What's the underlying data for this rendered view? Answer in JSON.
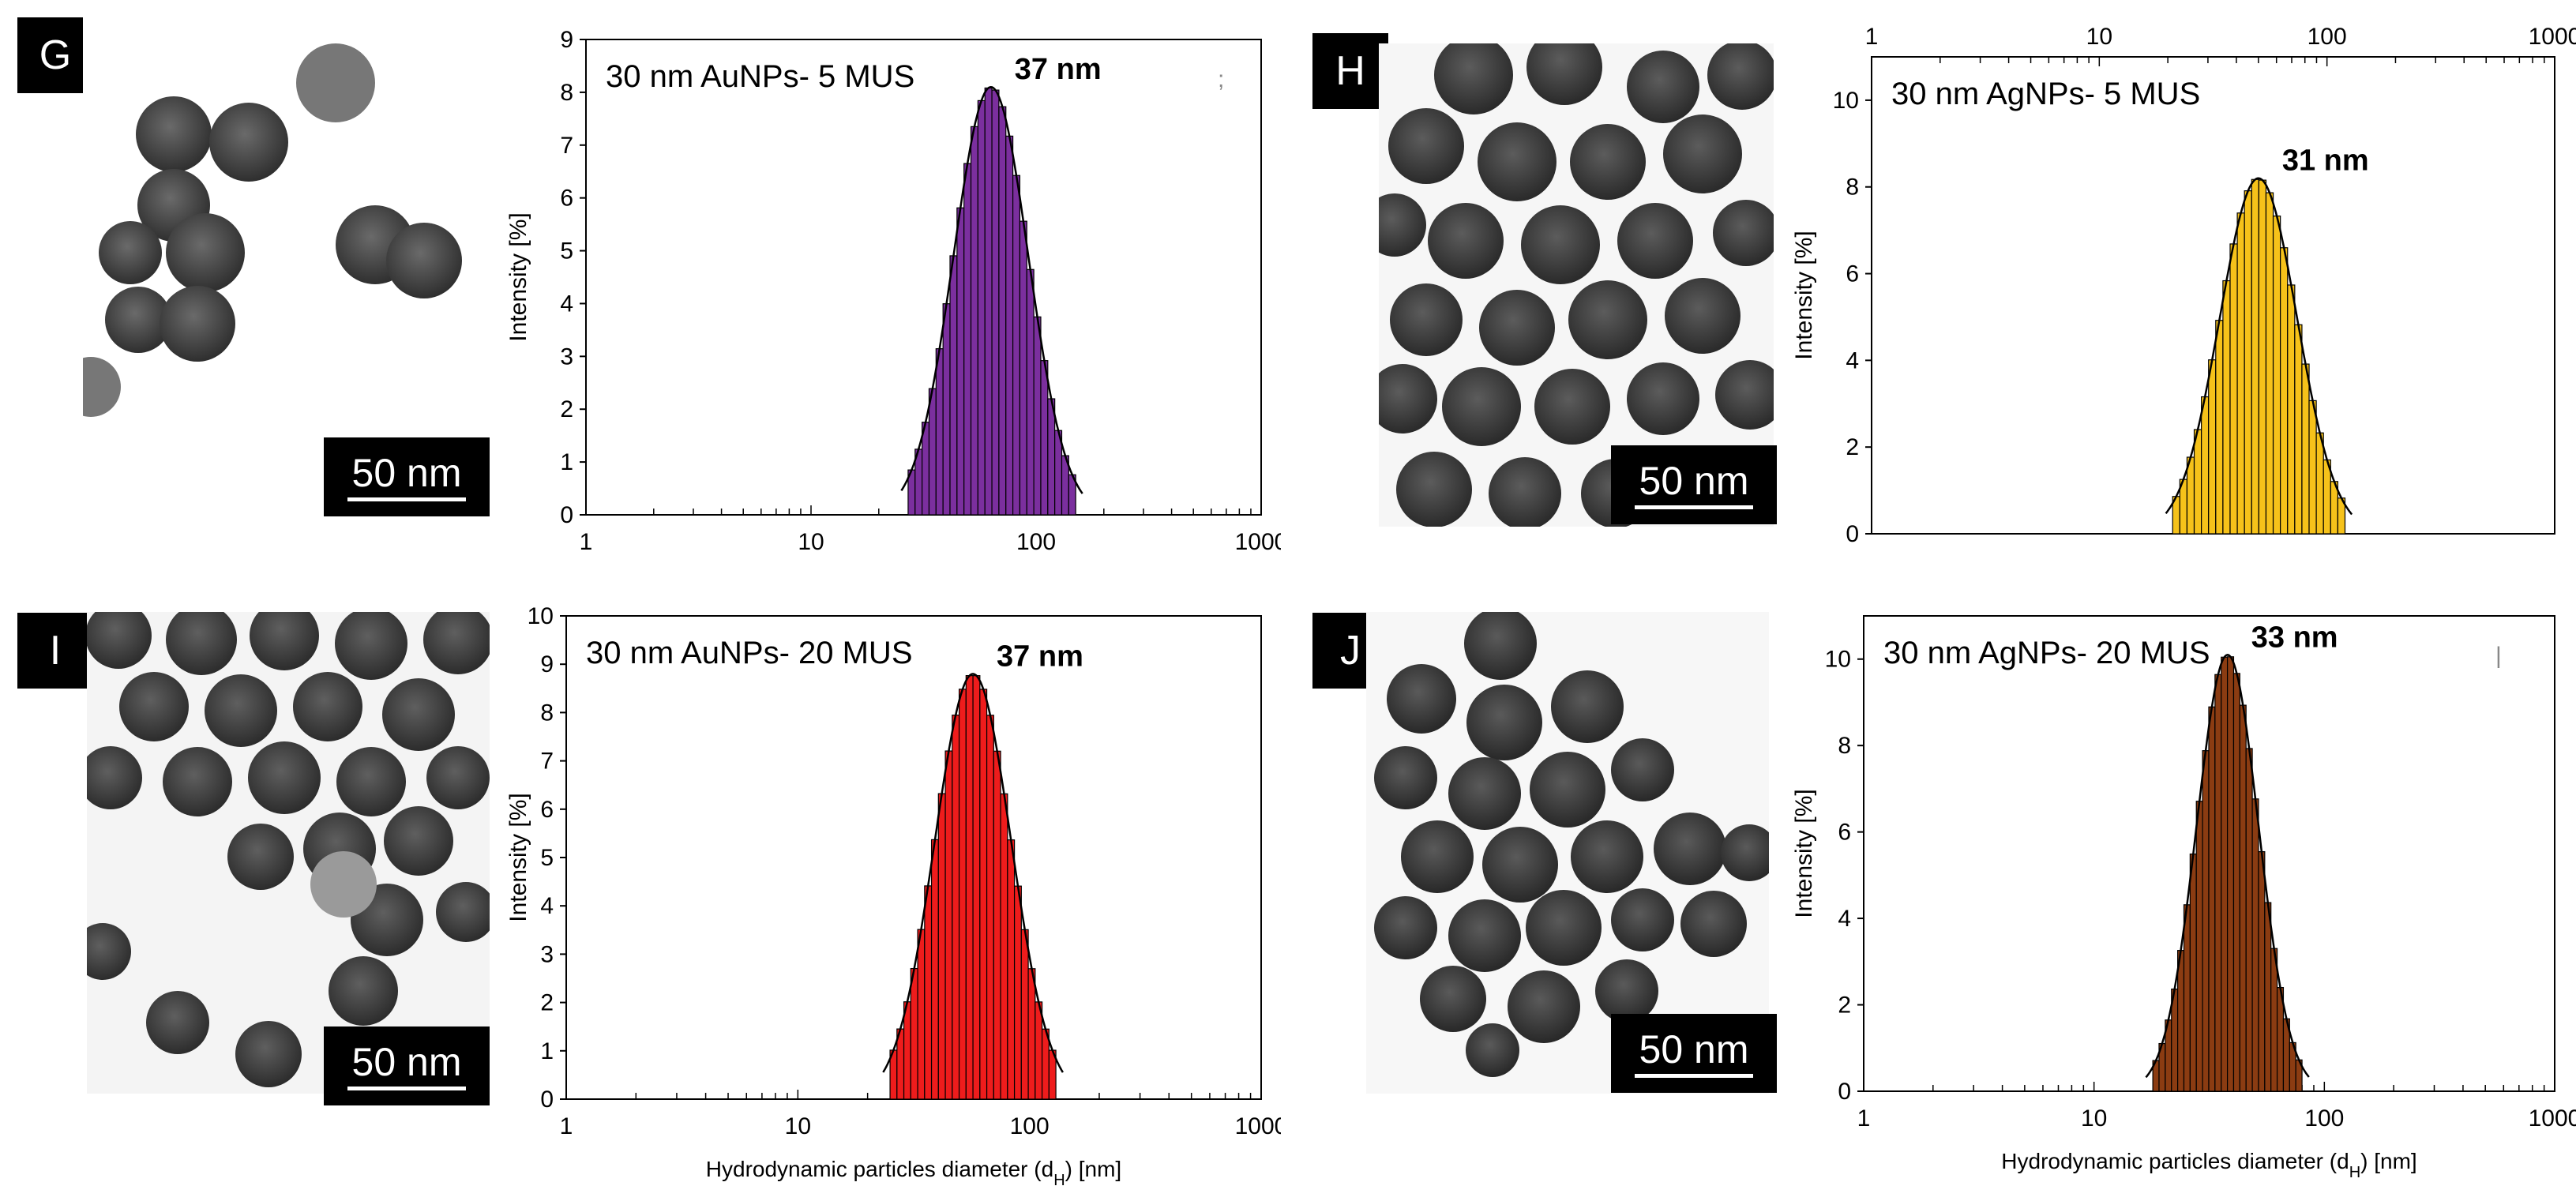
{
  "panels": [
    {
      "letter": "G",
      "scale_label": "50 nm"
    },
    {
      "letter": "H",
      "scale_label": "50 nm"
    },
    {
      "letter": "I",
      "scale_label": "50 nm"
    },
    {
      "letter": "J",
      "scale_label": "50 nm"
    }
  ],
  "colors": {
    "g_bars": "#7b2f9e",
    "h_bars": "#f6c21a",
    "i_bars": "#ee1c1c",
    "j_bars": "#8b3c12",
    "fit_line": "#000000",
    "tem_background": "#f6f6f6",
    "particle": "#4a4a4a"
  },
  "chart_data": [
    {
      "id": "G",
      "type": "bar",
      "title": "30 nm AuNPs- 5 MUS",
      "peak_label": "37 nm",
      "stray_mark": ";",
      "xscale": "log",
      "xlim": [
        1,
        1000
      ],
      "xticks": [
        "1",
        "10",
        "100",
        "1000"
      ],
      "xaxis_position": "bottom",
      "xlabel": "",
      "ylabel": "Intensity [%]",
      "ylim": [
        0,
        9
      ],
      "yticks": [
        "0",
        "1",
        "2",
        "3",
        "4",
        "5",
        "6",
        "7",
        "8",
        "9"
      ],
      "bin_range": [
        27,
        150
      ],
      "bin_count": 24,
      "peak_center": 63,
      "peak_height": 8.1,
      "log_sigma": 0.166,
      "color": "#7b2f9e"
    },
    {
      "id": "H",
      "type": "bar",
      "title": "30 nm AgNPs- 5 MUS",
      "peak_label": "31 nm",
      "stray_mark": "",
      "xscale": "log",
      "xlim": [
        1,
        1000
      ],
      "xticks": [
        "1",
        "10",
        "100",
        "1000"
      ],
      "xaxis_position": "top",
      "xlabel": "",
      "ylabel": "Intensity [%]",
      "ylim": [
        0,
        11
      ],
      "yticks": [
        "0",
        "2",
        "4",
        "6",
        "8",
        "10"
      ],
      "bin_range": [
        21,
        120
      ],
      "bin_count": 24,
      "peak_center": 50,
      "peak_height": 8.2,
      "log_sigma": 0.17,
      "color": "#f6c21a"
    },
    {
      "id": "I",
      "type": "bar",
      "title": "30 nm AuNPs- 20 MUS",
      "peak_label": "37 nm",
      "stray_mark": "",
      "xscale": "log",
      "xlim": [
        1,
        1000
      ],
      "xticks": [
        "1",
        "10",
        "100",
        "1000"
      ],
      "xaxis_position": "bottom",
      "xlabel": "Hydrodynamic particles diameter (dH) [nm]",
      "ylabel": "Intensity [%]",
      "ylim": [
        0,
        10
      ],
      "yticks": [
        "0",
        "1",
        "2",
        "3",
        "4",
        "5",
        "6",
        "7",
        "8",
        "9",
        "10"
      ],
      "bin_range": [
        25,
        130
      ],
      "bin_count": 24,
      "peak_center": 57,
      "peak_height": 8.8,
      "log_sigma": 0.165,
      "color": "#ee1c1c"
    },
    {
      "id": "J",
      "type": "bar",
      "title": "30 nm AgNPs- 20 MUS",
      "peak_label": "33 nm",
      "stray_mark": "|",
      "xscale": "log",
      "xlim": [
        1,
        1000
      ],
      "xticks": [
        "1",
        "10",
        "100",
        "1000"
      ],
      "xaxis_position": "bottom",
      "xlabel": "Hydrodynamic particles diameter (dH) [nm]",
      "ylabel": "Intensity [%]",
      "ylim": [
        0,
        11
      ],
      "yticks": [
        "0",
        "2",
        "4",
        "6",
        "8",
        "10"
      ],
      "bin_range": [
        18,
        80
      ],
      "bin_count": 24,
      "peak_center": 38,
      "peak_height": 10.1,
      "log_sigma": 0.135,
      "color": "#8b3c12"
    }
  ]
}
